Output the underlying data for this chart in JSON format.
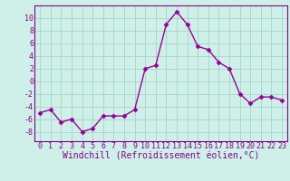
{
  "x": [
    0,
    1,
    2,
    3,
    4,
    5,
    6,
    7,
    8,
    9,
    10,
    11,
    12,
    13,
    14,
    15,
    16,
    17,
    18,
    19,
    20,
    21,
    22,
    23
  ],
  "y": [
    -5,
    -4.5,
    -6.5,
    -6,
    -8,
    -7.5,
    -5.5,
    -5.5,
    -5.5,
    -4.5,
    2,
    2.5,
    9,
    11,
    9,
    5.5,
    5,
    3,
    2,
    -2,
    -3.5,
    -2.5,
    -2.5,
    -3
  ],
  "line_color": "#990099",
  "marker": "D",
  "marker_size": 2.5,
  "bg_color": "#cef0e8",
  "grid_color": "#aad8cc",
  "xlabel": "Windchill (Refroidissement éolien,°C)",
  "xlim": [
    -0.5,
    23.5
  ],
  "ylim": [
    -9.5,
    12
  ],
  "yticks": [
    -8,
    -6,
    -4,
    -2,
    0,
    2,
    4,
    6,
    8,
    10
  ],
  "xticks": [
    0,
    1,
    2,
    3,
    4,
    5,
    6,
    7,
    8,
    9,
    10,
    11,
    12,
    13,
    14,
    15,
    16,
    17,
    18,
    19,
    20,
    21,
    22,
    23
  ],
  "tick_label_color": "#880088",
  "axis_color": "#880088",
  "font_family": "monospace",
  "xlabel_fontsize": 7.0,
  "tick_fontsize": 6.0,
  "linewidth": 1.0
}
